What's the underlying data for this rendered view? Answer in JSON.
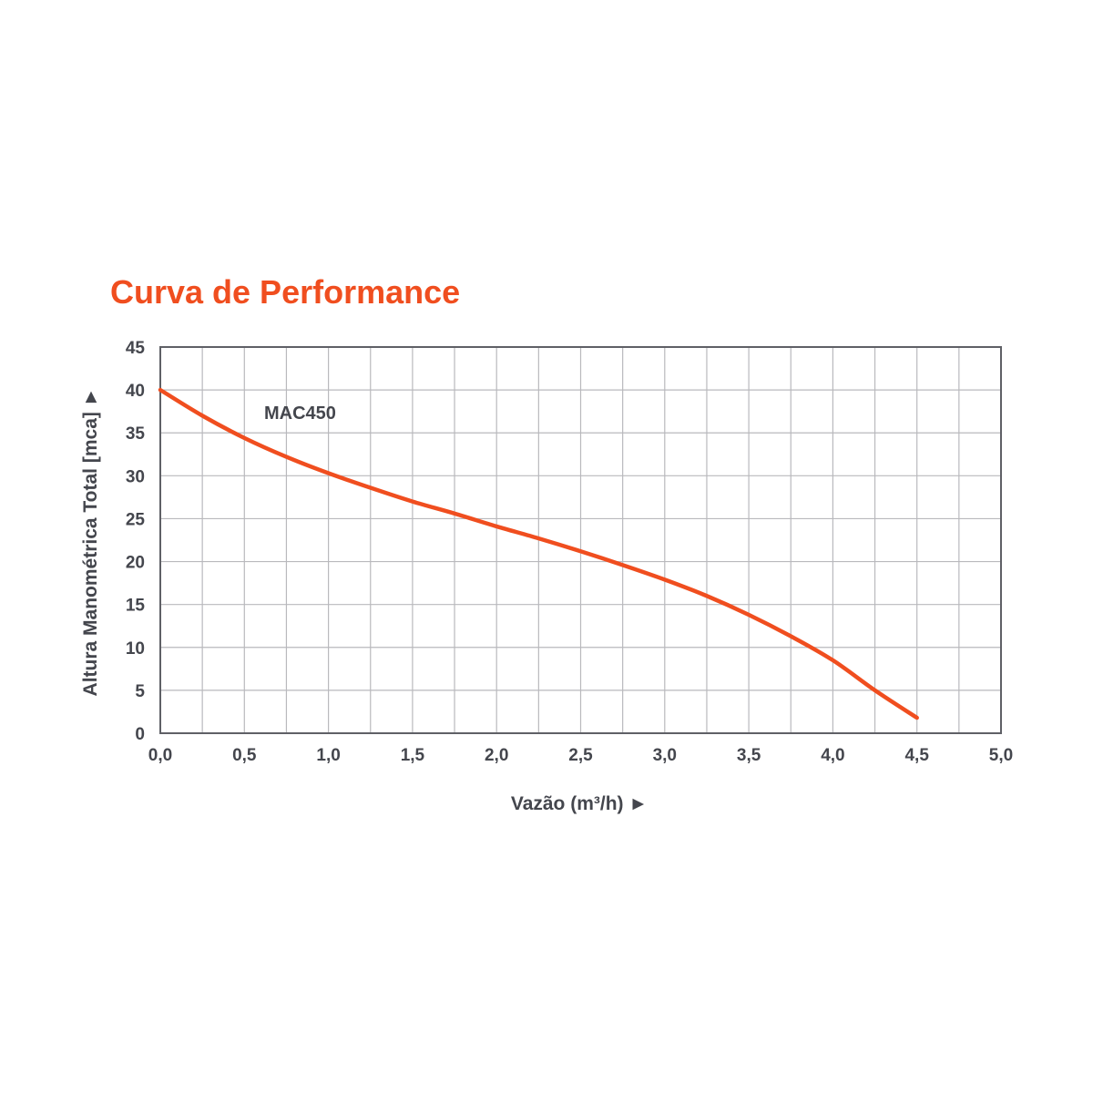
{
  "chart_data": {
    "type": "line",
    "title": "Curva de Performance",
    "xlabel": "Vazão (m³/h) ►",
    "ylabel": "Altura Manométrica Total [mca] ►",
    "xlim": [
      0,
      5
    ],
    "ylim": [
      0,
      45
    ],
    "x_tick_step": 0.25,
    "y_tick_step": 5,
    "x_tick_labels": [
      "0,0",
      "0,5",
      "1,0",
      "1,5",
      "2,0",
      "2,5",
      "3,0",
      "3,5",
      "4,0",
      "4,5",
      "5,0"
    ],
    "y_tick_labels": [
      "0",
      "5",
      "10",
      "15",
      "20",
      "25",
      "30",
      "35",
      "40",
      "45"
    ],
    "grid": true,
    "series": [
      {
        "name": "MAC450",
        "color": "#f04e1f",
        "x": [
          0.0,
          0.25,
          0.5,
          0.75,
          1.0,
          1.25,
          1.5,
          1.75,
          2.0,
          2.25,
          2.5,
          2.75,
          3.0,
          3.25,
          3.5,
          3.75,
          4.0,
          4.25,
          4.5
        ],
        "y": [
          40.0,
          37.0,
          34.4,
          32.2,
          30.3,
          28.6,
          27.0,
          25.6,
          24.1,
          22.7,
          21.2,
          19.6,
          17.9,
          16.0,
          13.8,
          11.3,
          8.5,
          5.0,
          1.8
        ]
      }
    ]
  },
  "colors": {
    "accent": "#f04e1f",
    "text": "#44464d",
    "grid": "#b9b9bd",
    "frame": "#5f6066"
  }
}
